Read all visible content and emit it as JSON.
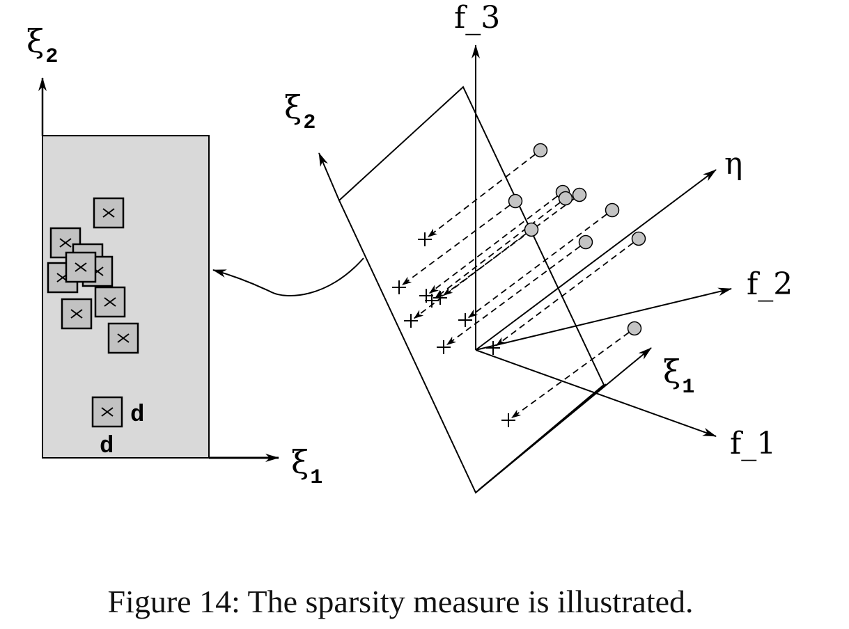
{
  "diagram": {
    "left_panel": {
      "axis_x_symbol": "ξ",
      "axis_x_subscript": "1",
      "axis_y_symbol": "ξ",
      "axis_y_subscript": "2",
      "marker_label_d_right": "d",
      "marker_label_d_below": "d"
    },
    "right_panel": {
      "axis_f1_label": "f_1",
      "axis_f2_label": "f_2",
      "axis_f3_label": "f_3",
      "axis_eta_label": "η",
      "plane_axis_xi1_symbol": "ξ",
      "plane_axis_xi1_subscript": "1",
      "plane_axis_xi2_symbol": "ξ",
      "plane_axis_xi2_subscript": "2"
    }
  },
  "caption": "Figure 14: The sparsity measure is illustrated.",
  "colors": {
    "panel_fill": "#d9d9d9",
    "marker_fill": "#c2c2c2",
    "circle_fill": "#c4c4c4",
    "line": "#000000"
  }
}
